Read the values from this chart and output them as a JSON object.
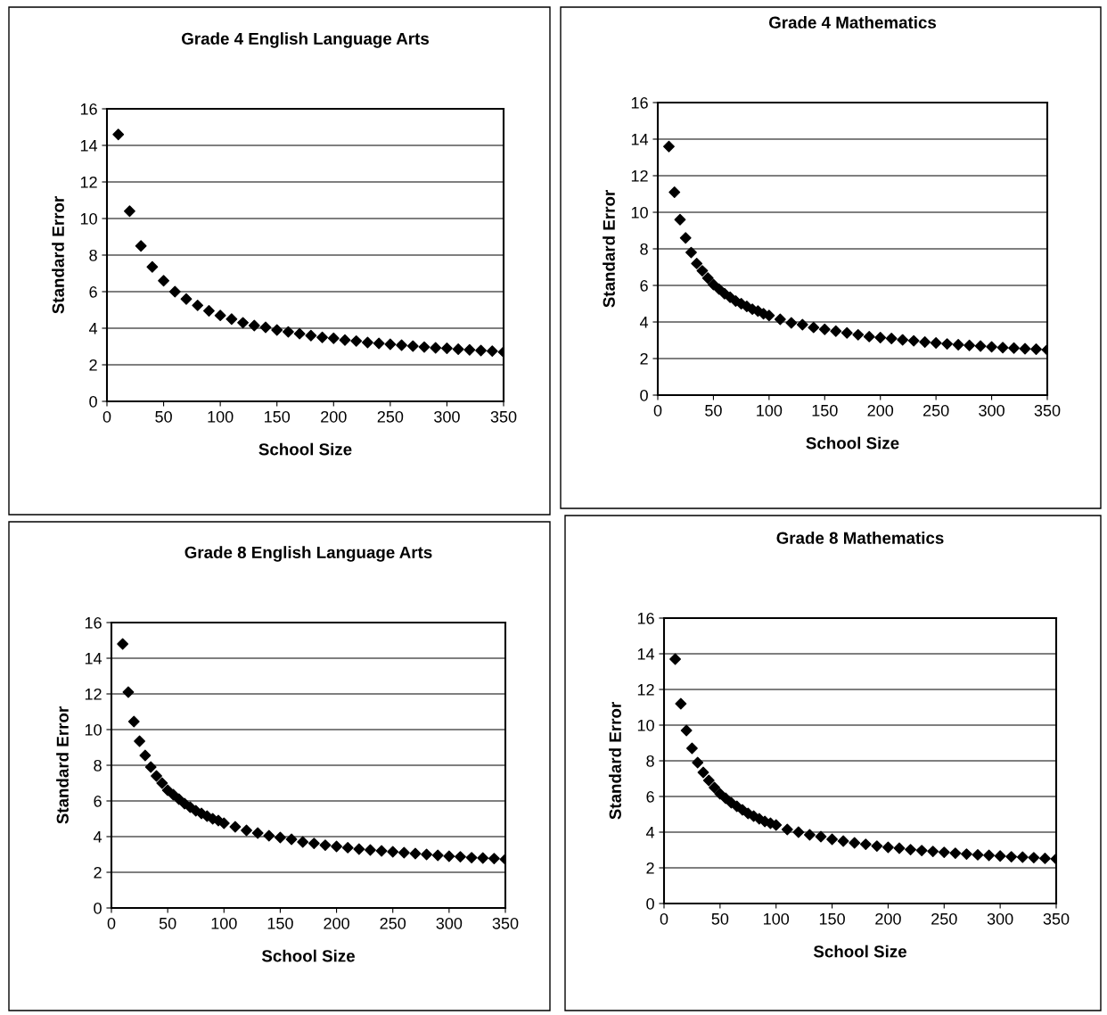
{
  "chart_data": [
    {
      "type": "scatter",
      "title": "Grade 4 English Language Arts",
      "xlabel": "School Size",
      "ylabel": "Standard Error",
      "xlim": [
        0,
        350
      ],
      "xticks": [
        0,
        50,
        100,
        150,
        200,
        250,
        300,
        350
      ],
      "ylim": [
        0,
        16
      ],
      "yticks": [
        0,
        2,
        4,
        6,
        8,
        10,
        12,
        14,
        16
      ],
      "grid": "y",
      "marker": "diamond",
      "series": [
        {
          "color": "#000000",
          "x": [
            10,
            20,
            30,
            40,
            50,
            60,
            70,
            80,
            90,
            100,
            110,
            120,
            130,
            140,
            150,
            160,
            170,
            180,
            190,
            200,
            210,
            220,
            230,
            240,
            250,
            260,
            270,
            280,
            290,
            300,
            310,
            320,
            330,
            340,
            350
          ],
          "values": [
            14.6,
            10.4,
            8.5,
            7.35,
            6.6,
            6.0,
            5.6,
            5.25,
            4.95,
            4.7,
            4.5,
            4.3,
            4.15,
            4.05,
            3.9,
            3.8,
            3.7,
            3.6,
            3.5,
            3.45,
            3.35,
            3.3,
            3.22,
            3.17,
            3.12,
            3.07,
            3.02,
            2.97,
            2.93,
            2.9,
            2.85,
            2.82,
            2.78,
            2.75,
            2.7
          ]
        }
      ]
    },
    {
      "type": "scatter",
      "title": "Grade 4 Mathematics",
      "xlabel": "School Size",
      "ylabel": "Standard Error",
      "xlim": [
        0,
        350
      ],
      "xticks": [
        0,
        50,
        100,
        150,
        200,
        250,
        300,
        350
      ],
      "ylim": [
        0,
        16
      ],
      "yticks": [
        0,
        2,
        4,
        6,
        8,
        10,
        12,
        14,
        16
      ],
      "grid": "y",
      "marker": "diamond",
      "series": [
        {
          "color": "#000000",
          "x": [
            10,
            15,
            20,
            25,
            30,
            35,
            40,
            45,
            50,
            55,
            60,
            65,
            70,
            75,
            80,
            85,
            90,
            95,
            100,
            110,
            120,
            130,
            140,
            150,
            160,
            170,
            180,
            190,
            200,
            210,
            220,
            230,
            240,
            250,
            260,
            270,
            280,
            290,
            300,
            310,
            320,
            330,
            340,
            350
          ],
          "values": [
            13.6,
            11.1,
            9.6,
            8.6,
            7.8,
            7.2,
            6.8,
            6.4,
            6.05,
            5.8,
            5.55,
            5.35,
            5.15,
            5.0,
            4.85,
            4.7,
            4.6,
            4.45,
            4.35,
            4.15,
            3.95,
            3.85,
            3.7,
            3.6,
            3.5,
            3.4,
            3.3,
            3.2,
            3.15,
            3.1,
            3.02,
            2.97,
            2.9,
            2.85,
            2.8,
            2.76,
            2.72,
            2.68,
            2.64,
            2.6,
            2.57,
            2.54,
            2.51,
            2.48
          ]
        }
      ]
    },
    {
      "type": "scatter",
      "title": "Grade 8 English Language Arts",
      "xlabel": "School Size",
      "ylabel": "Standard Error",
      "xlim": [
        0,
        350
      ],
      "xticks": [
        0,
        50,
        100,
        150,
        200,
        250,
        300,
        350
      ],
      "ylim": [
        0,
        16
      ],
      "yticks": [
        0,
        2,
        4,
        6,
        8,
        10,
        12,
        14,
        16
      ],
      "grid": "y",
      "marker": "diamond",
      "series": [
        {
          "color": "#000000",
          "x": [
            10,
            15,
            20,
            25,
            30,
            35,
            40,
            45,
            50,
            55,
            60,
            65,
            70,
            75,
            80,
            85,
            90,
            95,
            100,
            110,
            120,
            130,
            140,
            150,
            160,
            170,
            180,
            190,
            200,
            210,
            220,
            230,
            240,
            250,
            260,
            270,
            280,
            290,
            300,
            310,
            320,
            330,
            340,
            350
          ],
          "values": [
            14.8,
            12.1,
            10.45,
            9.35,
            8.55,
            7.9,
            7.4,
            7.0,
            6.6,
            6.35,
            6.1,
            5.85,
            5.65,
            5.45,
            5.3,
            5.15,
            5.0,
            4.9,
            4.75,
            4.55,
            4.35,
            4.2,
            4.05,
            3.95,
            3.85,
            3.7,
            3.62,
            3.52,
            3.45,
            3.38,
            3.3,
            3.25,
            3.2,
            3.15,
            3.1,
            3.05,
            3.0,
            2.95,
            2.9,
            2.87,
            2.82,
            2.8,
            2.77,
            2.73
          ]
        }
      ]
    },
    {
      "type": "scatter",
      "title": "Grade 8 Mathematics",
      "xlabel": "School Size",
      "ylabel": "Standard Error",
      "xlim": [
        0,
        350
      ],
      "xticks": [
        0,
        50,
        100,
        150,
        200,
        250,
        300,
        350
      ],
      "ylim": [
        0,
        16
      ],
      "yticks": [
        0,
        2,
        4,
        6,
        8,
        10,
        12,
        14,
        16
      ],
      "grid": "y",
      "marker": "diamond",
      "series": [
        {
          "color": "#000000",
          "x": [
            10,
            15,
            20,
            25,
            30,
            35,
            40,
            45,
            50,
            55,
            60,
            65,
            70,
            75,
            80,
            85,
            90,
            95,
            100,
            110,
            120,
            130,
            140,
            150,
            160,
            170,
            180,
            190,
            200,
            210,
            220,
            230,
            240,
            250,
            260,
            270,
            280,
            290,
            300,
            310,
            320,
            330,
            340,
            350
          ],
          "values": [
            13.7,
            11.2,
            9.7,
            8.7,
            7.9,
            7.35,
            6.9,
            6.5,
            6.15,
            5.9,
            5.65,
            5.45,
            5.25,
            5.05,
            4.9,
            4.75,
            4.6,
            4.5,
            4.4,
            4.15,
            4.0,
            3.85,
            3.75,
            3.6,
            3.5,
            3.4,
            3.32,
            3.22,
            3.15,
            3.1,
            3.02,
            2.97,
            2.92,
            2.87,
            2.82,
            2.77,
            2.73,
            2.7,
            2.66,
            2.62,
            2.6,
            2.57,
            2.53,
            2.5
          ]
        }
      ]
    }
  ]
}
